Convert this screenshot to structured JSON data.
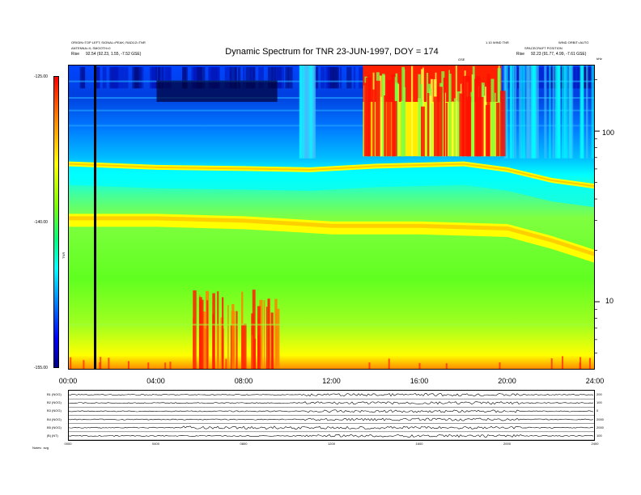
{
  "header": {
    "left_line1": "ORIGIN=TOP LEFT; SIGNAL=PEAK; RAD1/2=TNR",
    "left_line2": "ANTENNA=X; SMOOTH=0",
    "left_rise_label": "Rise",
    "left_rise_value": "92.54 (92.23, 1.55, -7.52 GSE)",
    "right_line1": "1.10 WIND TNR",
    "right_line2": "SPACECRAFT POSITION",
    "right_line3": "WIND ORBIT=AUTO",
    "right_rise_label": "Rise",
    "right_rise_value": "92.23 (91.77, 4.99, -7.61 GSE)",
    "gse_label": "GSE",
    "khz_label": "kHz"
  },
  "chart_data": {
    "type": "heatmap",
    "title": "Dynamic Spectrum for TNR 23-JUN-1997, DOY = 174",
    "x_ticks": [
      "00:00",
      "04:00",
      "08:00",
      "12:00",
      "16:00",
      "20:00",
      "24:00"
    ],
    "x_range_hours": [
      0,
      24
    ],
    "y_ticks_right": [
      "100",
      "10"
    ],
    "y_tick_values_khz": [
      100,
      10
    ],
    "y_range_khz": [
      4,
      245
    ],
    "y_scale": "log",
    "colorbar": {
      "ticks": [
        "-125.00",
        "-140.00",
        "-155.00"
      ],
      "tick_values": [
        -125,
        -140,
        -155
      ],
      "label": "TNR",
      "colors_top_to_bottom": [
        "#ff0000",
        "#ff8000",
        "#ffff00",
        "#80ff00",
        "#00ff80",
        "#00ffff",
        "#0080ff",
        "#0000ff",
        "#00008b"
      ]
    },
    "vertical_marker_hour": 1.2,
    "plasma_line_khz": [
      {
        "hour": 0,
        "khz": 65
      },
      {
        "hour": 4,
        "khz": 62
      },
      {
        "hour": 8,
        "khz": 61
      },
      {
        "hour": 11,
        "khz": 60
      },
      {
        "hour": 14,
        "khz": 63
      },
      {
        "hour": 18,
        "khz": 65
      },
      {
        "hour": 20,
        "khz": 60
      },
      {
        "hour": 22,
        "khz": 52
      },
      {
        "hour": 24,
        "khz": 48
      }
    ],
    "second_band_khz": [
      {
        "hour": 0,
        "khz": 31
      },
      {
        "hour": 4,
        "khz": 31
      },
      {
        "hour": 8,
        "khz": 30
      },
      {
        "hour": 12,
        "khz": 28
      },
      {
        "hour": 16,
        "khz": 28
      },
      {
        "hour": 20,
        "khz": 27
      },
      {
        "hour": 22,
        "khz": 23
      },
      {
        "hour": 24,
        "khz": 19
      }
    ],
    "red_burst_hours": [
      13.4,
      19.7
    ],
    "low_freq_bursts_hours": [
      5.5,
      9.5
    ]
  },
  "traces": {
    "labels": [
      "B1 (NOG)",
      "B2 (NOG)",
      "B3 (NOG)",
      "B4 (NOG)",
      "B5 (NOG)",
      "|B| (NT)"
    ],
    "right_values": [
      "200",
      "100",
      "0",
      "2000",
      "2000",
      "100"
    ],
    "x_ticks": [
      "0000",
      "0400",
      "0800",
      "1200",
      "1600",
      "2000",
      "2400"
    ],
    "footer_label": "Notes: .svg"
  },
  "colors": {
    "frame": "#000000",
    "marker": "#000000"
  }
}
